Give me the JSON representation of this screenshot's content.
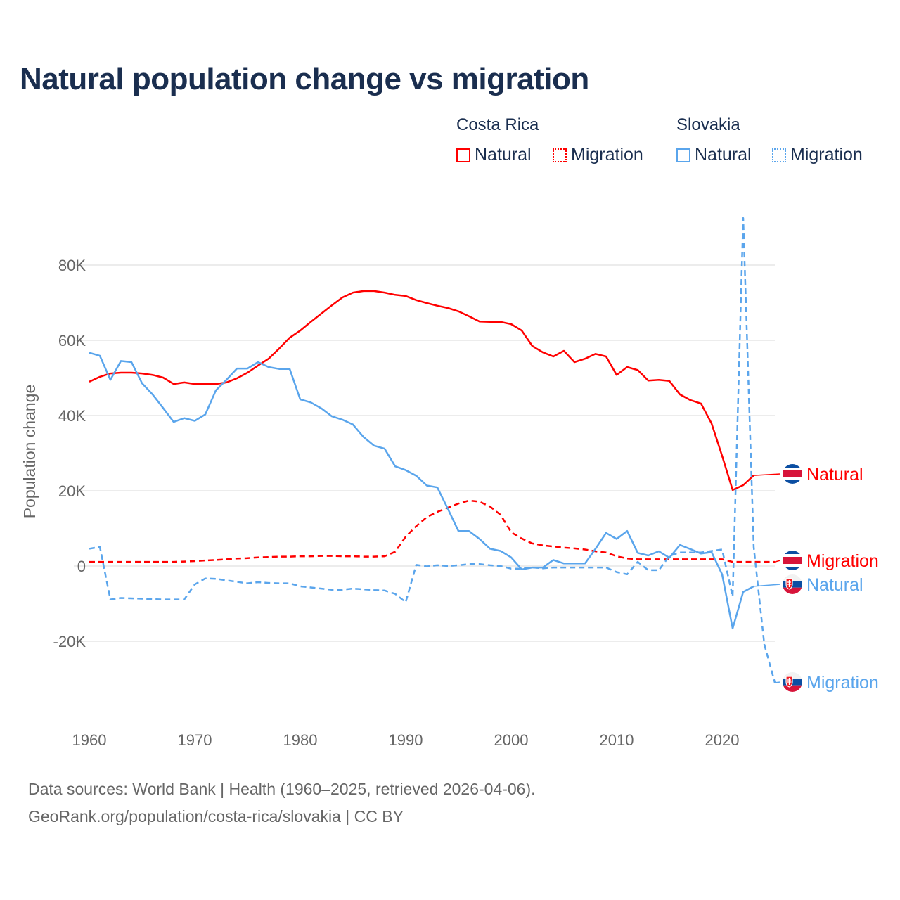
{
  "title": "Natural population change vs migration",
  "legend": {
    "groups": [
      {
        "name": "Costa Rica",
        "items": [
          "Natural",
          "Migration"
        ]
      },
      {
        "name": "Slovakia",
        "items": [
          "Natural",
          "Migration"
        ]
      }
    ]
  },
  "footer": {
    "line1": "Data sources: World Bank | Health (1960–2025, retrieved 2026-04-06).",
    "line2": "GeoRank.org/population/costa-rica/slovakia | CC BY"
  },
  "chart_data": {
    "type": "line",
    "title": "Natural population change vs migration",
    "xlabel": "",
    "ylabel": "Population change",
    "xlim": [
      1960,
      2025
    ],
    "ylim": [
      -33000,
      93000
    ],
    "x_ticks": [
      1960,
      1970,
      1980,
      1990,
      2000,
      2010,
      2020
    ],
    "x_tick_labels": [
      "1960",
      "1970",
      "1980",
      "1990",
      "2000",
      "2010",
      "2020"
    ],
    "y_ticks": [
      -20000,
      0,
      20000,
      40000,
      60000,
      80000
    ],
    "y_tick_labels": [
      "-20K",
      "0",
      "20K",
      "40K",
      "60K",
      "80K"
    ],
    "grid": true,
    "legend_position": "top-right",
    "series": [
      {
        "name": "Natural",
        "country": "Costa Rica",
        "color": "#ff0000",
        "dash": "solid",
        "start_year": 1960,
        "values": [
          49000,
          50300,
          51200,
          51400,
          51400,
          51200,
          50800,
          50100,
          48400,
          48800,
          48400,
          48400,
          48400,
          48800,
          49900,
          51400,
          53300,
          55100,
          57800,
          60700,
          62600,
          64900,
          67100,
          69300,
          71400,
          72700,
          73100,
          73100,
          72700,
          72100,
          71800,
          70700,
          69900,
          69200,
          68600,
          67700,
          66400,
          65000,
          64900,
          64900,
          64300,
          62600,
          58500,
          56800,
          55700,
          57200,
          54200,
          55100,
          56400,
          55700,
          50800,
          52900,
          52100,
          49300,
          49500,
          49200,
          45600,
          44100,
          43200,
          37900,
          29300,
          20200,
          21500,
          24100
        ]
      },
      {
        "name": "Migration",
        "country": "Costa Rica",
        "color": "#ff0000",
        "dash": "dashed",
        "start_year": 1960,
        "values": [
          1100,
          1100,
          1100,
          1100,
          1100,
          1100,
          1100,
          1100,
          1100,
          1200,
          1300,
          1500,
          1600,
          1800,
          2000,
          2100,
          2300,
          2400,
          2500,
          2500,
          2600,
          2600,
          2700,
          2700,
          2600,
          2600,
          2500,
          2500,
          2600,
          3800,
          7800,
          10600,
          13000,
          14400,
          15500,
          16600,
          17400,
          17100,
          15800,
          13600,
          9000,
          7300,
          6000,
          5500,
          5200,
          4900,
          4700,
          4400,
          3900,
          3600,
          2600,
          2000,
          1800,
          1800,
          1800,
          1800,
          1800,
          1800,
          1800,
          1800,
          1800,
          1100,
          1100,
          1100,
          1100,
          1100
        ]
      },
      {
        "name": "Natural",
        "country": "Slovakia",
        "color": "#5aa5ec",
        "dash": "solid",
        "start_year": 1960,
        "values": [
          56700,
          55900,
          49500,
          54500,
          54200,
          48600,
          45600,
          42000,
          38300,
          39300,
          38600,
          40300,
          46700,
          49500,
          52500,
          52500,
          54200,
          52900,
          52400,
          52400,
          44300,
          43500,
          41900,
          39800,
          38900,
          37600,
          34300,
          32000,
          31200,
          26500,
          25500,
          24000,
          21400,
          20900,
          15200,
          9300,
          9300,
          7200,
          4600,
          4000,
          2300,
          -900,
          -400,
          -400,
          1600,
          700,
          700,
          700,
          4600,
          8800,
          7200,
          9300,
          3500,
          2800,
          3900,
          2200,
          5600,
          4500,
          3300,
          3700,
          -2200,
          -16600,
          -6900,
          -5400
        ]
      },
      {
        "name": "Migration",
        "country": "Slovakia",
        "color": "#5aa5ec",
        "dash": "dashed",
        "start_year": 1960,
        "values": [
          4600,
          5100,
          -8900,
          -8500,
          -8600,
          -8700,
          -8800,
          -8900,
          -8900,
          -8900,
          -4900,
          -3300,
          -3400,
          -3800,
          -4200,
          -4600,
          -4300,
          -4500,
          -4600,
          -4600,
          -5400,
          -5700,
          -6000,
          -6300,
          -6300,
          -6000,
          -6200,
          -6400,
          -6500,
          -7400,
          -9600,
          300,
          -100,
          200,
          0,
          200,
          500,
          500,
          200,
          0,
          -700,
          -700,
          -400,
          -600,
          -400,
          -400,
          -400,
          -400,
          -400,
          -400,
          -1600,
          -2200,
          1100,
          -1100,
          -1100,
          2700,
          3600,
          3600,
          3600,
          4000,
          4400,
          -8100,
          92500,
          5000,
          -20800,
          -31000
        ]
      }
    ]
  }
}
